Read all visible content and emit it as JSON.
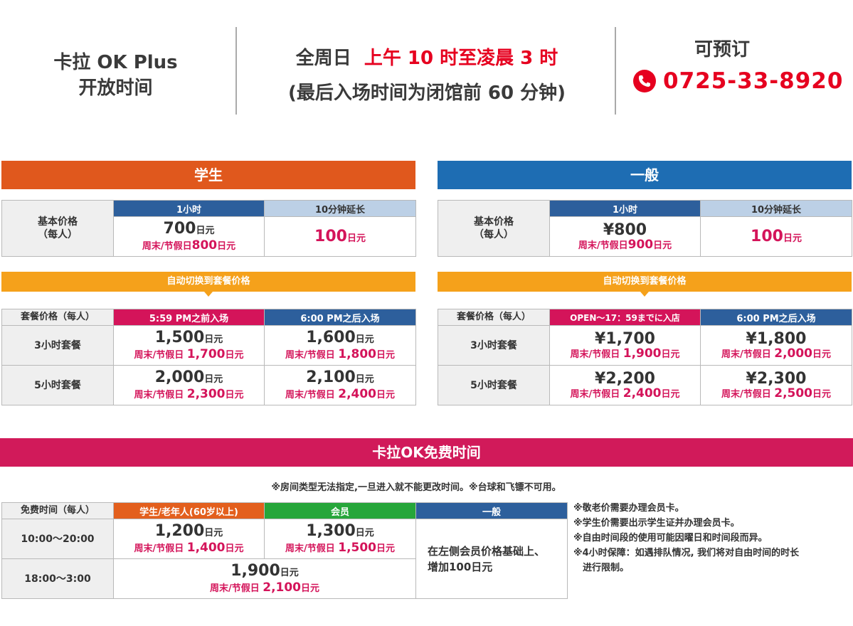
{
  "header": {
    "hours_title_line1": "卡拉 OK Plus",
    "hours_title_line2": "开放时间",
    "open_prefix": "全周日",
    "open_hours": "上午 10 时至凌晨 3 时",
    "last_entry": "(最后入场时间为闭馆前 60 分钟)",
    "reservation_label": "可预订",
    "phone": "0725-33-8920",
    "phone_icon": "phone-icon"
  },
  "student": {
    "banner": "学生",
    "basic_label_1": "基本价格",
    "basic_label_2": "（每人）",
    "col_1h": "1小时",
    "col_ext": "10分钟延长",
    "base_price": "700",
    "base_unit": "日元",
    "base_weekend_prefix": "周末/节假日",
    "base_weekend_price": "800",
    "base_weekend_unit": "日元",
    "ext_price": "100",
    "ext_unit": "日元",
    "switch_banner": "自动切换到套餐价格",
    "pack_label": "套餐价格（每人）",
    "pack_col_a": "5:59 PM之前入场",
    "pack_col_b": "6:00 PM之后入场",
    "rows": [
      {
        "label": "3小时套餐",
        "a": "1,500",
        "a_wk": "1,700",
        "b": "1,600",
        "b_wk": "1,800"
      },
      {
        "label": "5小时套餐",
        "a": "2,000",
        "a_wk": "2,300",
        "b": "2,100",
        "b_wk": "2,400"
      }
    ]
  },
  "general": {
    "banner": "一般",
    "basic_label_1": "基本价格",
    "basic_label_2": "（每人）",
    "col_1h": "1小时",
    "col_ext": "10分钟延长",
    "base_price": "¥800",
    "base_weekend_prefix": "周末/节假日",
    "base_weekend_price": "900",
    "base_weekend_unit": "日元",
    "ext_price": "100",
    "ext_unit": "日元",
    "switch_banner": "自动切换到套餐价格",
    "pack_label": "套餐价格（每人）",
    "pack_col_a": "OPEN～17：59までに入店",
    "pack_col_b": "6:00 PM之后入场",
    "rows": [
      {
        "label": "3小时套餐",
        "a": "¥1,700",
        "a_wk": "1,900",
        "b": "¥1,800",
        "b_wk": "2,000"
      },
      {
        "label": "5小时套餐",
        "a": "¥2,200",
        "a_wk": "2,400",
        "b": "¥2,300",
        "b_wk": "2,500"
      }
    ]
  },
  "free": {
    "banner": "卡拉OK免费时间",
    "note": "※房间类型无法指定,一旦进入就不能更改时间。※台球和飞镖不可用。",
    "col_label": "免费时间（每人）",
    "col_student": "学生/老年人(60岁以上)",
    "col_member": "会员",
    "col_general": "一般",
    "row1_label": "10:00～20:00",
    "row1_student": "1,200",
    "row1_student_wk": "1,400",
    "row1_member": "1,300",
    "row1_member_wk": "1,500",
    "general_text_1": "在左侧会员价格基础上、",
    "general_text_2": "增加100日元",
    "row2_label": "18:00～3:00",
    "row2_price": "1,900",
    "row2_wk": "2,100",
    "weekend_prefix": "周末/节假日",
    "unit": "日元",
    "side_notes": [
      "※敬老价需要办理会员卡。",
      "※学生价需要出示学生证并办理会员卡。",
      "※自由时间段的使用可能因曜日和时间段而异。",
      "※4小时保障：如遇排队情况, 我们将对自由时间的时长",
      "　进行限制。"
    ]
  },
  "colors": {
    "student": "#e0581d",
    "general": "#1e6db3",
    "switch": "#f5a11b",
    "free": "#d11a5a",
    "accent_red": "#e6001f"
  }
}
